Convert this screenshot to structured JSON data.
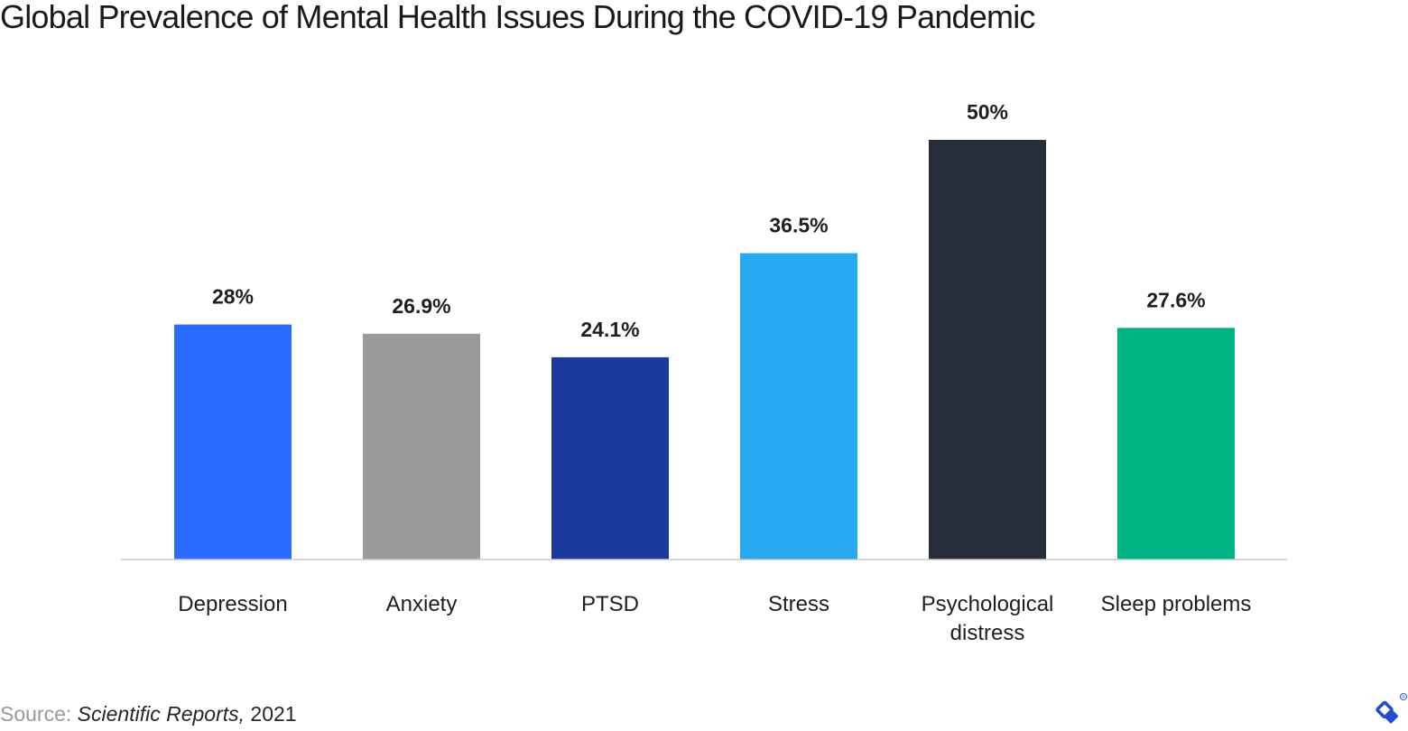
{
  "title": "Global Prevalence of Mental Health Issues During the COVID-19 Pandemic",
  "footer": {
    "source_label": "Source: ",
    "publication": "Scientific Reports,",
    "year": " 2021"
  },
  "logo": {
    "icon": "toptal-logo-icon",
    "color": "#204ECF"
  },
  "chart_data": {
    "type": "bar",
    "title": "Global Prevalence of Mental Health Issues During the COVID-19 Pandemic",
    "xlabel": "",
    "ylabel": "",
    "ylim": [
      0,
      50
    ],
    "grid": false,
    "legend": "none",
    "categories": [
      "Depression",
      "Anxiety",
      "PTSD",
      "Stress",
      "Psychological distress",
      "Sleep problems"
    ],
    "category_lines": [
      [
        "Depression"
      ],
      [
        "Anxiety"
      ],
      [
        "PTSD"
      ],
      [
        "Stress"
      ],
      [
        "Psychological",
        "distress"
      ],
      [
        "Sleep problems"
      ]
    ],
    "values": [
      28,
      26.9,
      24.1,
      36.5,
      50,
      27.6
    ],
    "value_labels": [
      "28%",
      "26.9%",
      "24.1%",
      "36.5%",
      "50%",
      "27.6%"
    ],
    "colors": [
      "#2B6BFF",
      "#9B9B9B",
      "#1A3A9E",
      "#26A9EF",
      "#262D3B",
      "#00B383"
    ],
    "axis_color": "#C8C8C8",
    "label_color": "#1f1f1f"
  }
}
